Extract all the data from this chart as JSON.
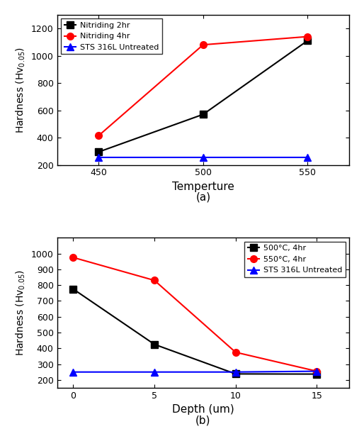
{
  "fig_width": 5.14,
  "fig_height": 6.22,
  "dpi": 100,
  "top": {
    "x": [
      450,
      500,
      550
    ],
    "series": [
      {
        "label": "Nitriding 2hr",
        "y": [
          295,
          570,
          1110
        ],
        "color": "black",
        "marker": "s",
        "linestyle": "-"
      },
      {
        "label": "Nitriding 4hr",
        "y": [
          415,
          1080,
          1140
        ],
        "color": "red",
        "marker": "o",
        "linestyle": "-"
      },
      {
        "label": "STS 316L Untreated",
        "y": [
          255,
          255,
          255
        ],
        "color": "blue",
        "marker": "^",
        "linestyle": "-"
      }
    ],
    "xlabel": "Temperture",
    "ylabel": "Hardness (Hv$_{0.05}$)",
    "xlim": [
      430,
      570
    ],
    "ylim": [
      200,
      1300
    ],
    "xticks": [
      450,
      500,
      550
    ],
    "yticks": [
      200,
      400,
      600,
      800,
      1000,
      1200
    ],
    "subtitle": "(a)",
    "legend_loc": "upper left"
  },
  "bottom": {
    "x": [
      0,
      5,
      10,
      15
    ],
    "series": [
      {
        "label": "500°C, 4hr",
        "y": [
          775,
          425,
          238,
          237
        ],
        "color": "black",
        "marker": "s",
        "linestyle": "-"
      },
      {
        "label": "550°C, 4hr",
        "y": [
          975,
          830,
          375,
          255
        ],
        "color": "red",
        "marker": "o",
        "linestyle": "-"
      },
      {
        "label": "STS 316L Untreated",
        "y": [
          250,
          250,
          250,
          255
        ],
        "color": "blue",
        "marker": "^",
        "linestyle": "-"
      }
    ],
    "xlabel": "Depth (um)",
    "ylabel": "Hardness (Hv$_{0.05}$)",
    "xlim": [
      -1,
      17
    ],
    "ylim": [
      150,
      1100
    ],
    "xticks": [
      0,
      5,
      10,
      15
    ],
    "yticks": [
      200,
      300,
      400,
      500,
      600,
      700,
      800,
      900,
      1000
    ],
    "subtitle": "(b)",
    "legend_loc": "upper right"
  }
}
